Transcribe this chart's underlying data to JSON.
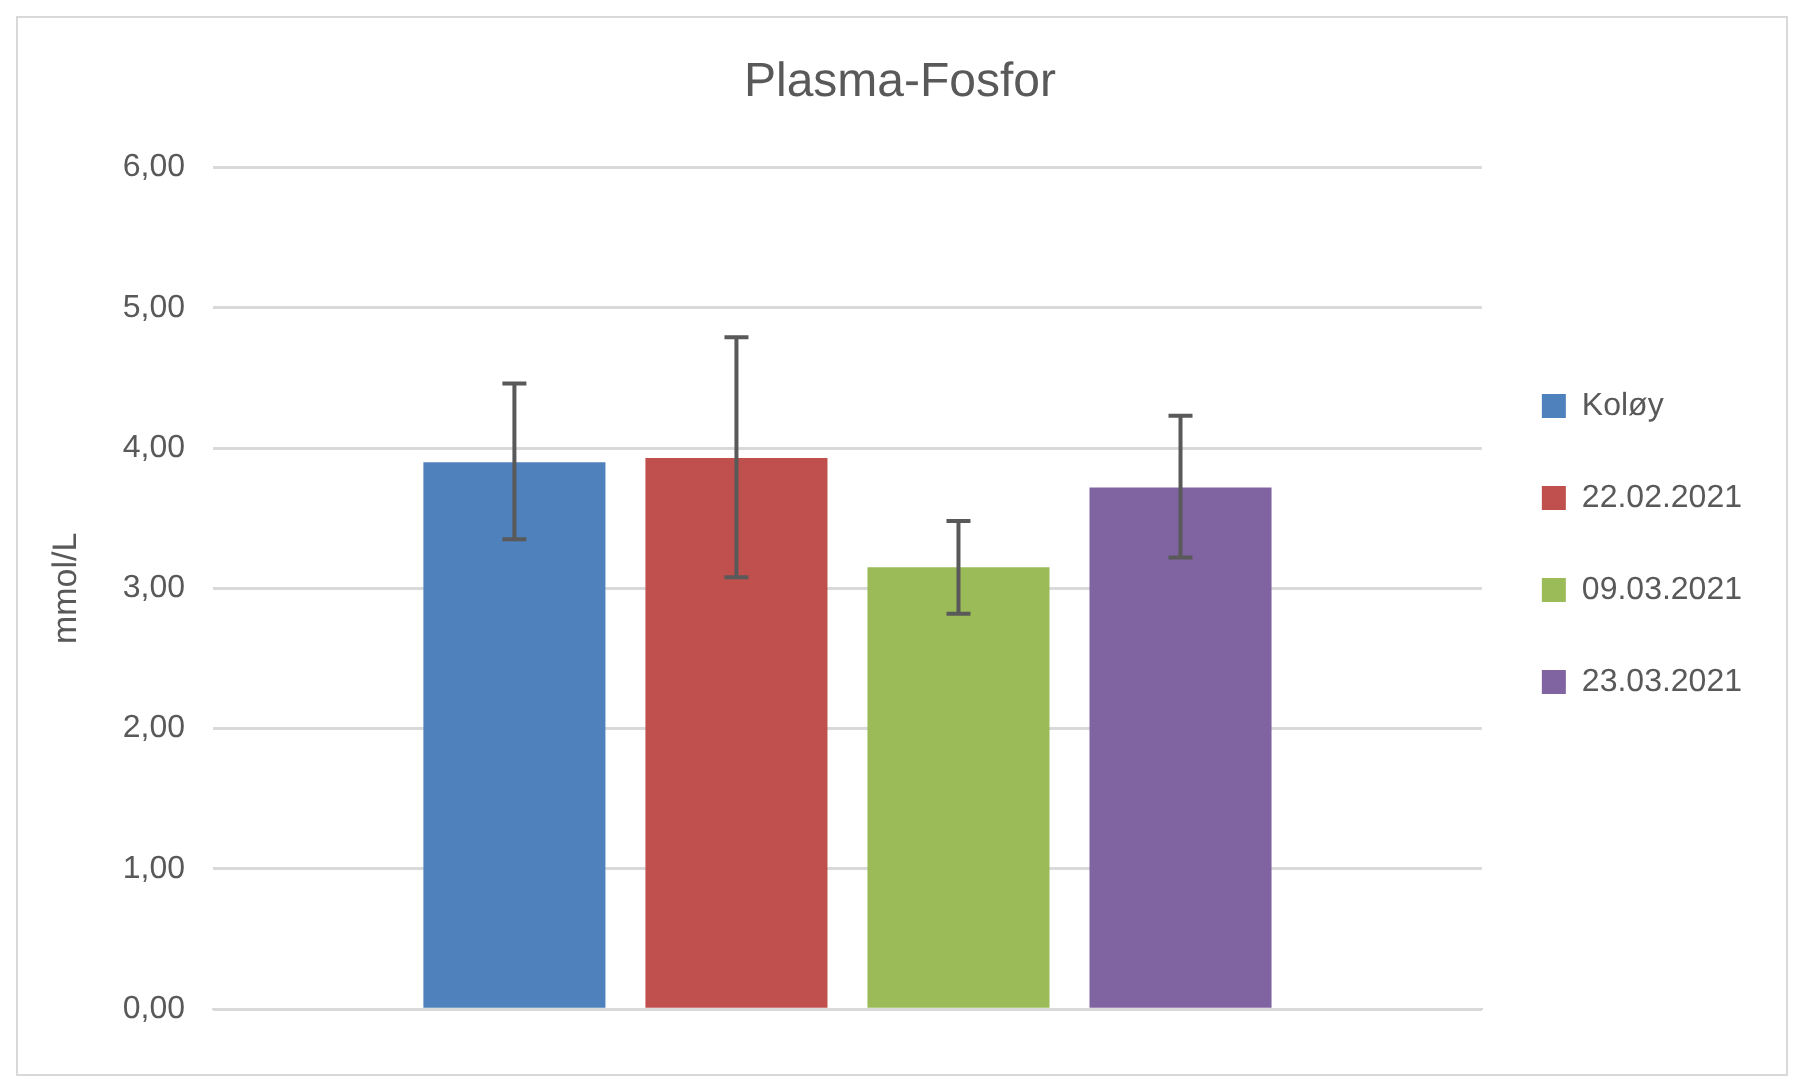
{
  "chart_data": {
    "type": "bar",
    "title": "Plasma-Fosfor",
    "ylabel": "mmol/L",
    "categories": [
      null
    ],
    "series": [
      {
        "name": "Koløy",
        "color": "#4f81bd",
        "values": [
          3.9
        ],
        "errors": [
          [
            3.35,
            4.46
          ]
        ]
      },
      {
        "name": "22.02.2021",
        "color": "#c0504d",
        "values": [
          3.93
        ],
        "errors": [
          [
            3.08,
            4.79
          ]
        ]
      },
      {
        "name": "09.03.2021",
        "color": "#9bbb59",
        "values": [
          3.15
        ],
        "errors": [
          [
            2.82,
            3.48
          ]
        ]
      },
      {
        "name": "23.03.2021",
        "color": "#8064a2",
        "values": [
          3.72
        ],
        "errors": [
          [
            3.22,
            4.23
          ]
        ]
      }
    ],
    "ylim": [
      0,
      6
    ],
    "yticks": [
      {
        "value": 0,
        "label": "0,00"
      },
      {
        "value": 1,
        "label": "1,00"
      },
      {
        "value": 2,
        "label": "2,00"
      },
      {
        "value": 3,
        "label": "3,00"
      },
      {
        "value": 4,
        "label": "4,00"
      },
      {
        "value": 5,
        "label": "5,00"
      },
      {
        "value": 6,
        "label": "6,00"
      }
    ],
    "grid": "y",
    "legend": "right"
  }
}
